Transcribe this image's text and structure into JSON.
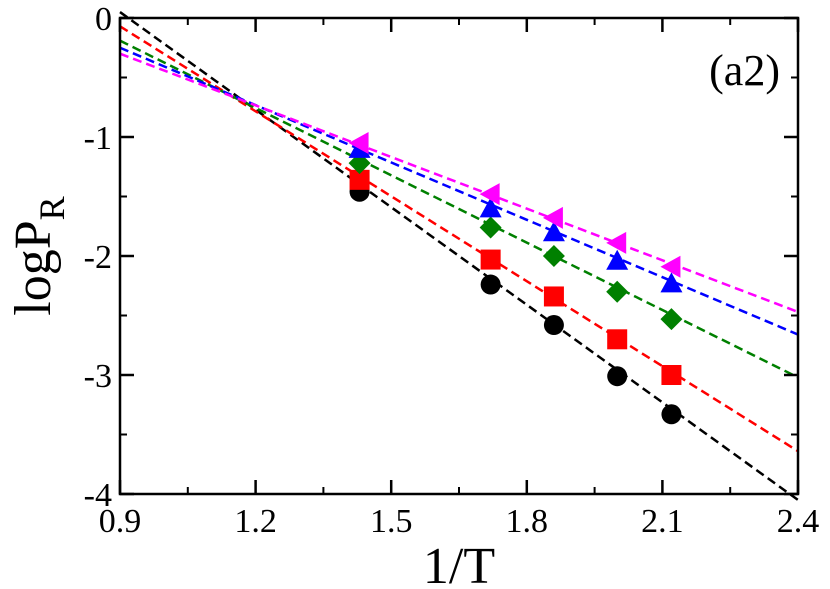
{
  "chart_data": {
    "type": "scatter",
    "title": "",
    "panel_label": "(a2)",
    "xlabel": "1/T",
    "ylabel": {
      "main": "logP",
      "subscript": "R"
    },
    "xlim": [
      0.9,
      2.4
    ],
    "ylim": [
      -4,
      0
    ],
    "xticks": [
      0.9,
      1.2,
      1.5,
      1.8,
      2.1,
      2.4
    ],
    "xtick_labels": [
      "0.9",
      "1.2",
      "1.5",
      "1.8",
      "2.1",
      "2.4"
    ],
    "yticks": [
      -4,
      -3,
      -2,
      -1,
      0
    ],
    "ytick_labels": [
      "-4",
      "-3",
      "-2",
      "-1",
      "0"
    ],
    "grid": false,
    "series": [
      {
        "name": "circle",
        "marker": "circle",
        "color": "#000000",
        "points": [
          {
            "x": 1.43,
            "y": -1.46
          },
          {
            "x": 1.72,
            "y": -2.24
          },
          {
            "x": 1.86,
            "y": -2.58
          },
          {
            "x": 2.0,
            "y": -3.01
          },
          {
            "x": 2.12,
            "y": -3.33
          }
        ],
        "fit_line": {
          "x": [
            0.9,
            2.4
          ],
          "y": [
            0.05,
            -4.05
          ]
        }
      },
      {
        "name": "square",
        "marker": "square",
        "color": "#ff0000",
        "points": [
          {
            "x": 1.43,
            "y": -1.36
          },
          {
            "x": 1.72,
            "y": -2.03
          },
          {
            "x": 1.86,
            "y": -2.34
          },
          {
            "x": 2.0,
            "y": -2.7
          },
          {
            "x": 2.12,
            "y": -3.0
          }
        ],
        "fit_line": {
          "x": [
            0.9,
            2.4
          ],
          "y": [
            -0.07,
            -3.64
          ]
        }
      },
      {
        "name": "diamond",
        "marker": "diamond",
        "color": "#008000",
        "points": [
          {
            "x": 1.43,
            "y": -1.22
          },
          {
            "x": 1.72,
            "y": -1.76
          },
          {
            "x": 1.86,
            "y": -2.0
          },
          {
            "x": 2.0,
            "y": -2.3
          },
          {
            "x": 2.12,
            "y": -2.53
          }
        ],
        "fit_line": {
          "x": [
            0.9,
            2.4
          ],
          "y": [
            -0.19,
            -3.02
          ]
        }
      },
      {
        "name": "triangle-up",
        "marker": "triangle-up",
        "color": "#0000ff",
        "points": [
          {
            "x": 1.43,
            "y": -1.1
          },
          {
            "x": 1.72,
            "y": -1.6
          },
          {
            "x": 1.86,
            "y": -1.8
          },
          {
            "x": 2.0,
            "y": -2.04
          },
          {
            "x": 2.12,
            "y": -2.23
          }
        ],
        "fit_line": {
          "x": [
            0.9,
            2.4
          ],
          "y": [
            -0.25,
            -2.66
          ]
        }
      },
      {
        "name": "triangle-left",
        "marker": "triangle-left",
        "color": "#ff00ff",
        "points": [
          {
            "x": 1.43,
            "y": -1.05
          },
          {
            "x": 1.72,
            "y": -1.48
          },
          {
            "x": 1.86,
            "y": -1.68
          },
          {
            "x": 2.0,
            "y": -1.89
          },
          {
            "x": 2.12,
            "y": -2.09
          }
        ],
        "fit_line": {
          "x": [
            0.9,
            2.4
          ],
          "y": [
            -0.3,
            -2.47
          ]
        }
      }
    ]
  }
}
